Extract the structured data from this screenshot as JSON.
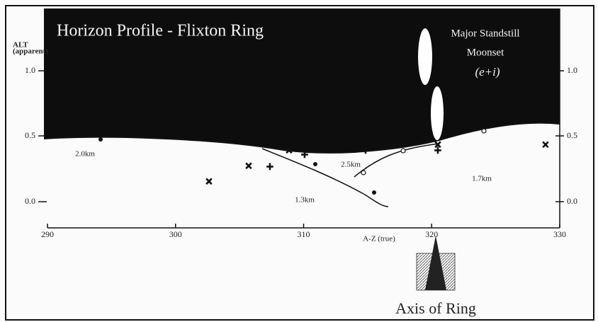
{
  "title": "Horizon Profile - Flixton Ring",
  "y_axis": {
    "label": "ALT",
    "sublabel": "(apparent)",
    "ticks": [
      "1.0",
      "0.5",
      "0.0"
    ]
  },
  "x_axis": {
    "label": "A-Z (true)",
    "ticks": [
      "290",
      "300",
      "310",
      "320",
      "330"
    ]
  },
  "annotations": {
    "moonset_line1": "Major Standstill",
    "moonset_line2": "Moonset",
    "moonset_line3": "(e+i)",
    "distances": [
      "2.0km",
      "1.3km",
      "2.5km",
      "1.7km"
    ],
    "axis_of_ring": "Axis of Ring"
  }
}
